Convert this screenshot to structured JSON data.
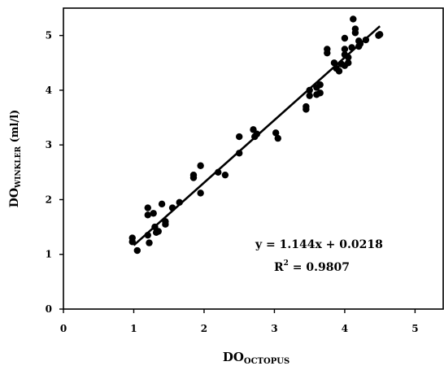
{
  "chart_data": {
    "type": "scatter",
    "xlim": [
      0,
      5.4
    ],
    "ylim": [
      0,
      5.5
    ],
    "x_ticks": [
      0,
      1,
      2,
      3,
      4,
      5
    ],
    "y_ticks": [
      0,
      1,
      2,
      3,
      4,
      5
    ],
    "grid": false,
    "legend": "none",
    "xlabel": {
      "main": "DO",
      "sub": "OCTOPUS"
    },
    "ylabel": {
      "main": "DO",
      "sub": "WINKLER",
      "suffix": " (ml/l)"
    },
    "annotation": {
      "equation": "y = 1.144x + 0.0218",
      "r2_main": "R",
      "r2_sup": "2",
      "r2_rest": " = 0.9807"
    },
    "trendline": {
      "slope": 1.144,
      "intercept": 0.0218,
      "x_range": [
        1.0,
        4.5
      ]
    },
    "point_color": "#000000",
    "points": [
      [
        0.98,
        1.3
      ],
      [
        0.98,
        1.23
      ],
      [
        1.05,
        1.07
      ],
      [
        1.2,
        1.85
      ],
      [
        1.2,
        1.72
      ],
      [
        1.22,
        1.21
      ],
      [
        1.2,
        1.35
      ],
      [
        1.28,
        1.75
      ],
      [
        1.3,
        1.5
      ],
      [
        1.32,
        1.4
      ],
      [
        1.35,
        1.42
      ],
      [
        1.4,
        1.92
      ],
      [
        1.45,
        1.6
      ],
      [
        1.45,
        1.55
      ],
      [
        1.55,
        1.85
      ],
      [
        1.65,
        1.95
      ],
      [
        1.85,
        2.45
      ],
      [
        1.85,
        2.4
      ],
      [
        1.95,
        2.62
      ],
      [
        1.95,
        2.12
      ],
      [
        2.2,
        2.5
      ],
      [
        2.3,
        2.45
      ],
      [
        2.5,
        3.15
      ],
      [
        2.5,
        2.85
      ],
      [
        2.7,
        3.28
      ],
      [
        2.72,
        3.15
      ],
      [
        2.75,
        3.2
      ],
      [
        3.02,
        3.22
      ],
      [
        3.05,
        3.12
      ],
      [
        3.45,
        3.7
      ],
      [
        3.45,
        3.65
      ],
      [
        3.5,
        4.0
      ],
      [
        3.5,
        3.9
      ],
      [
        3.6,
        4.05
      ],
      [
        3.6,
        3.92
      ],
      [
        3.65,
        3.95
      ],
      [
        3.65,
        4.1
      ],
      [
        3.75,
        4.75
      ],
      [
        3.75,
        4.68
      ],
      [
        3.85,
        4.5
      ],
      [
        3.88,
        4.4
      ],
      [
        3.92,
        4.35
      ],
      [
        3.95,
        4.48
      ],
      [
        4.0,
        4.95
      ],
      [
        4.0,
        4.75
      ],
      [
        4.0,
        4.65
      ],
      [
        4.0,
        4.45
      ],
      [
        4.05,
        4.6
      ],
      [
        4.05,
        4.5
      ],
      [
        4.1,
        4.78
      ],
      [
        4.12,
        5.3
      ],
      [
        4.15,
        5.12
      ],
      [
        4.15,
        5.05
      ],
      [
        4.2,
        4.9
      ],
      [
        4.2,
        4.8
      ],
      [
        4.22,
        4.85
      ],
      [
        4.3,
        4.92
      ],
      [
        4.48,
        5.0
      ],
      [
        4.5,
        5.02
      ]
    ]
  }
}
